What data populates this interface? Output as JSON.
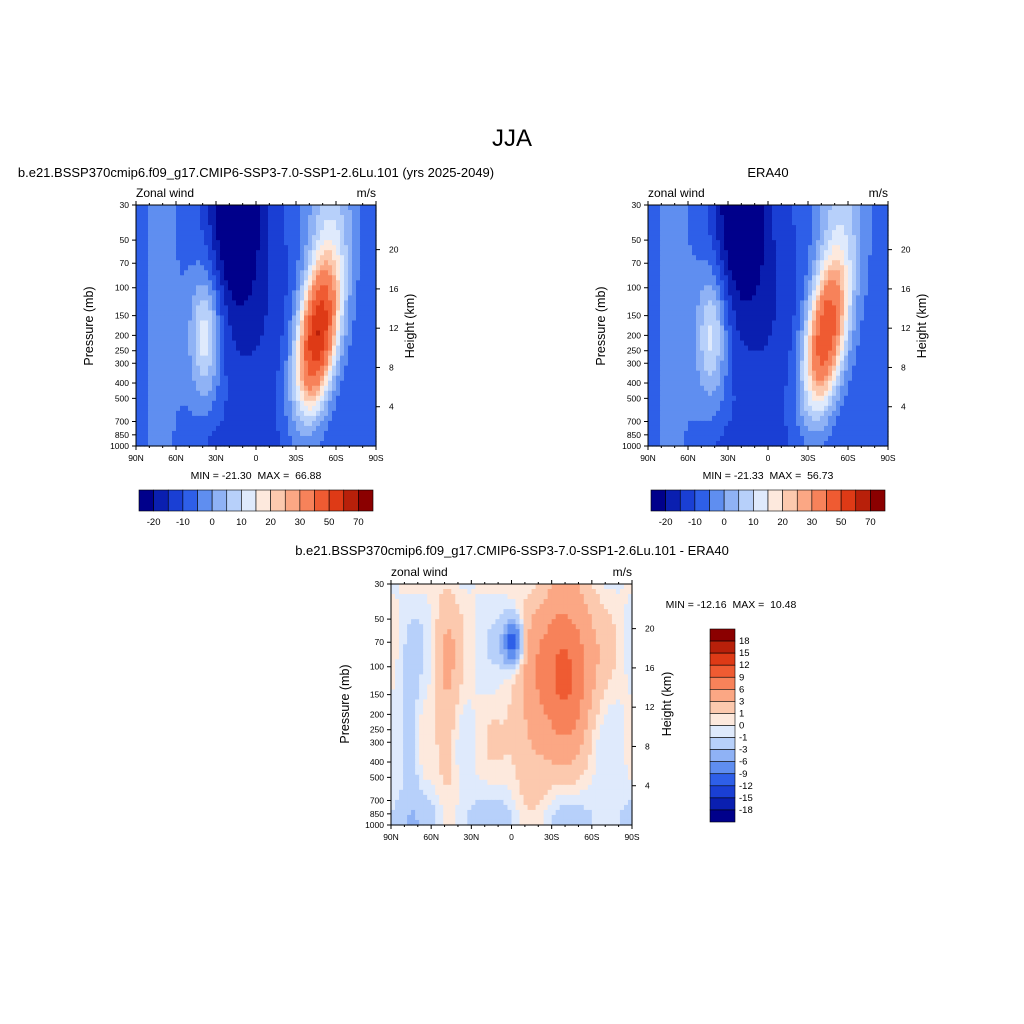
{
  "figure": {
    "title": "JJA"
  },
  "colors": {
    "levels_20": [
      "#00008b",
      "#0a1fb0",
      "#1a3fd4",
      "#2e5fe8",
      "#5f8ef0",
      "#8fb2f5",
      "#b7d0fa",
      "#dfeafc",
      "#fde9dd",
      "#fcc9ae",
      "#fba784",
      "#f7825a",
      "#ef5b32",
      "#de3a16",
      "#b8200a",
      "#8b0000"
    ],
    "levels_diff": [
      "#8b0000",
      "#b8200a",
      "#de3a16",
      "#ef5b32",
      "#f7825a",
      "#fba784",
      "#fcc9ae",
      "#fde9dd",
      "#dfeafc",
      "#b7d0fa",
      "#8fb2f5",
      "#5f8ef0",
      "#2e5fe8",
      "#1a3fd4",
      "#0a1fb0",
      "#00008b"
    ]
  },
  "chart_data": [
    {
      "type": "heatmap",
      "panel_title": "b.e21.BSSP370cmip6.f09_g17.CMIP6-SSP3-7.0-SSP1-2.6Lu.101 (yrs 2025-2049)",
      "left_string": "Zonal wind",
      "right_string": "m/s",
      "ylabel": "Pressure (mb)",
      "ylabel_right": "Height (km)",
      "x_ticks": [
        "90N",
        "60N",
        "30N",
        "0",
        "30S",
        "60S",
        "90S"
      ],
      "y_ticks": [
        "30",
        "50",
        "70",
        "100",
        "150",
        "200",
        "250",
        "300",
        "400",
        "500",
        "700",
        "850",
        "1000"
      ],
      "y_ticks_right": [
        "20",
        "16",
        "12",
        "8",
        "4"
      ],
      "ylim": [
        1000,
        30
      ],
      "xlim": [
        90,
        -90
      ],
      "stats": "MIN = -21.30  MAX =  66.88",
      "min": -21.3,
      "max": 66.88,
      "colorbar_labels": [
        "-20",
        "-10",
        "0",
        "10",
        "20",
        "30",
        "50",
        "70"
      ],
      "features": [
        {
          "kind": "jet",
          "lat": -46,
          "p": 200,
          "peak": 66.88
        },
        {
          "kind": "jet",
          "lat": 38,
          "p": 200,
          "peak": 22
        },
        {
          "kind": "easterly",
          "lat": 15,
          "p": 30,
          "peak": -21.3
        }
      ]
    },
    {
      "type": "heatmap",
      "panel_title": "ERA40",
      "left_string": "zonal wind",
      "right_string": "m/s",
      "ylabel": "Pressure (mb)",
      "ylabel_right": "Height (km)",
      "x_ticks": [
        "90N",
        "60N",
        "30N",
        "0",
        "30S",
        "60S",
        "90S"
      ],
      "y_ticks": [
        "30",
        "50",
        "70",
        "100",
        "150",
        "200",
        "250",
        "300",
        "400",
        "500",
        "700",
        "850",
        "1000"
      ],
      "y_ticks_right": [
        "20",
        "16",
        "12",
        "8",
        "4"
      ],
      "ylim": [
        1000,
        30
      ],
      "xlim": [
        90,
        -90
      ],
      "stats": "MIN = -21.33  MAX =  56.73",
      "min": -21.33,
      "max": 56.73,
      "colorbar_labels": [
        "-20",
        "-10",
        "0",
        "10",
        "20",
        "30",
        "50",
        "70"
      ],
      "features": [
        {
          "kind": "jet",
          "lat": -43,
          "p": 200,
          "peak": 56.73
        },
        {
          "kind": "jet",
          "lat": 42,
          "p": 200,
          "peak": 20
        },
        {
          "kind": "easterly",
          "lat": 20,
          "p": 30,
          "peak": -21.33
        }
      ]
    },
    {
      "type": "heatmap",
      "panel_title": "b.e21.BSSP370cmip6.f09_g17.CMIP6-SSP3-7.0-SSP1-2.6Lu.101 - ERA40",
      "left_string": "zonal wind",
      "right_string": "m/s",
      "ylabel": "Pressure (mb)",
      "ylabel_right": "Height (km)",
      "x_ticks": [
        "90N",
        "60N",
        "30N",
        "0",
        "30S",
        "60S",
        "90S"
      ],
      "y_ticks": [
        "30",
        "50",
        "70",
        "100",
        "150",
        "200",
        "250",
        "300",
        "400",
        "500",
        "700",
        "850",
        "1000"
      ],
      "y_ticks_right": [
        "20",
        "16",
        "12",
        "8",
        "4"
      ],
      "ylim": [
        1000,
        30
      ],
      "xlim": [
        90,
        -90
      ],
      "stats": "MIN = -12.16  MAX =  10.48",
      "min": -12.16,
      "max": 10.48,
      "colorbar_labels": [
        "18",
        "15",
        "12",
        "9",
        "6",
        "3",
        "1",
        "0",
        "-1",
        "-3",
        "-6",
        "-9",
        "-12",
        "-15",
        "-18"
      ],
      "features": [
        {
          "kind": "positive",
          "lat": -40,
          "p": 100,
          "peak": 10.48
        },
        {
          "kind": "negative",
          "lat": -1,
          "p": 70,
          "peak": -12.16
        }
      ]
    }
  ]
}
